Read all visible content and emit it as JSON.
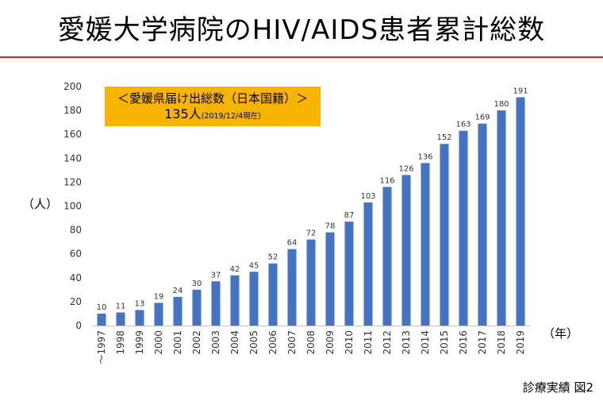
{
  "title": "愛媛大学病院のHIV/AIDS患者累計総数",
  "callout": {
    "line1": "＜愛媛県届け出総数（日本国籍）＞",
    "count": "135人",
    "date": "(2019/12/4現在)"
  },
  "footer": "診療実績 図2",
  "colors": {
    "bar": "#4472c4",
    "callout_bg": "#f7b400",
    "title_rule": "#d9241b"
  },
  "chart_data": {
    "type": "bar",
    "title": "愛媛大学病院のHIV/AIDS患者累計総数",
    "xlabel": "（年）",
    "ylabel": "（人）",
    "ylim": [
      0,
      200
    ],
    "yticks": [
      0,
      20,
      40,
      60,
      80,
      100,
      120,
      140,
      160,
      180,
      200
    ],
    "grid": false,
    "categories": [
      "～1997",
      "1998",
      "1999",
      "2000",
      "2001",
      "2002",
      "2003",
      "2004",
      "2005",
      "2006",
      "2007",
      "2008",
      "2009",
      "2010",
      "2011",
      "2012",
      "2013",
      "2014",
      "2015",
      "2016",
      "2017",
      "2018",
      "2019"
    ],
    "values": [
      10,
      11,
      13,
      19,
      24,
      30,
      37,
      42,
      45,
      52,
      64,
      72,
      78,
      87,
      103,
      116,
      126,
      136,
      152,
      163,
      169,
      180,
      191
    ],
    "data_labels": true
  }
}
